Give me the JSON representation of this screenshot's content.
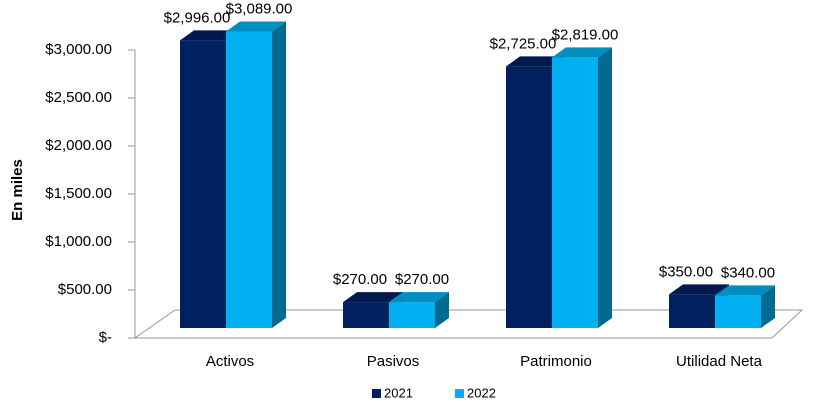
{
  "chart_data": {
    "type": "bar3d",
    "ylabel": "En miles",
    "categories": [
      "Activos",
      "Pasivos",
      "Patrimonio",
      "Utilidad Neta"
    ],
    "series": [
      {
        "name": "2021",
        "color": "#002060",
        "values": [
          2996,
          270,
          2725,
          350
        ],
        "value_labels": [
          "$2,996.00",
          "$270.00",
          "$2,725.00",
          "$350.00"
        ]
      },
      {
        "name": "2022",
        "color": "#00b0f0",
        "values": [
          3089,
          270,
          2819,
          340
        ],
        "value_labels": [
          "$3,089.00",
          "$270.00",
          "$2,819.00",
          "$340.00"
        ]
      }
    ],
    "ylim": [
      0,
      3000
    ],
    "yticks": [
      {
        "value": 0,
        "label": "$-"
      },
      {
        "value": 500,
        "label": "$500.00"
      },
      {
        "value": 1000,
        "label": "$1,000.00"
      },
      {
        "value": 1500,
        "label": "$1,500.00"
      },
      {
        "value": 2000,
        "label": "$2,000.00"
      },
      {
        "value": 2500,
        "label": "$2,500.00"
      },
      {
        "value": 3000,
        "label": "$3,000.00"
      }
    ],
    "legend": "bottom"
  }
}
